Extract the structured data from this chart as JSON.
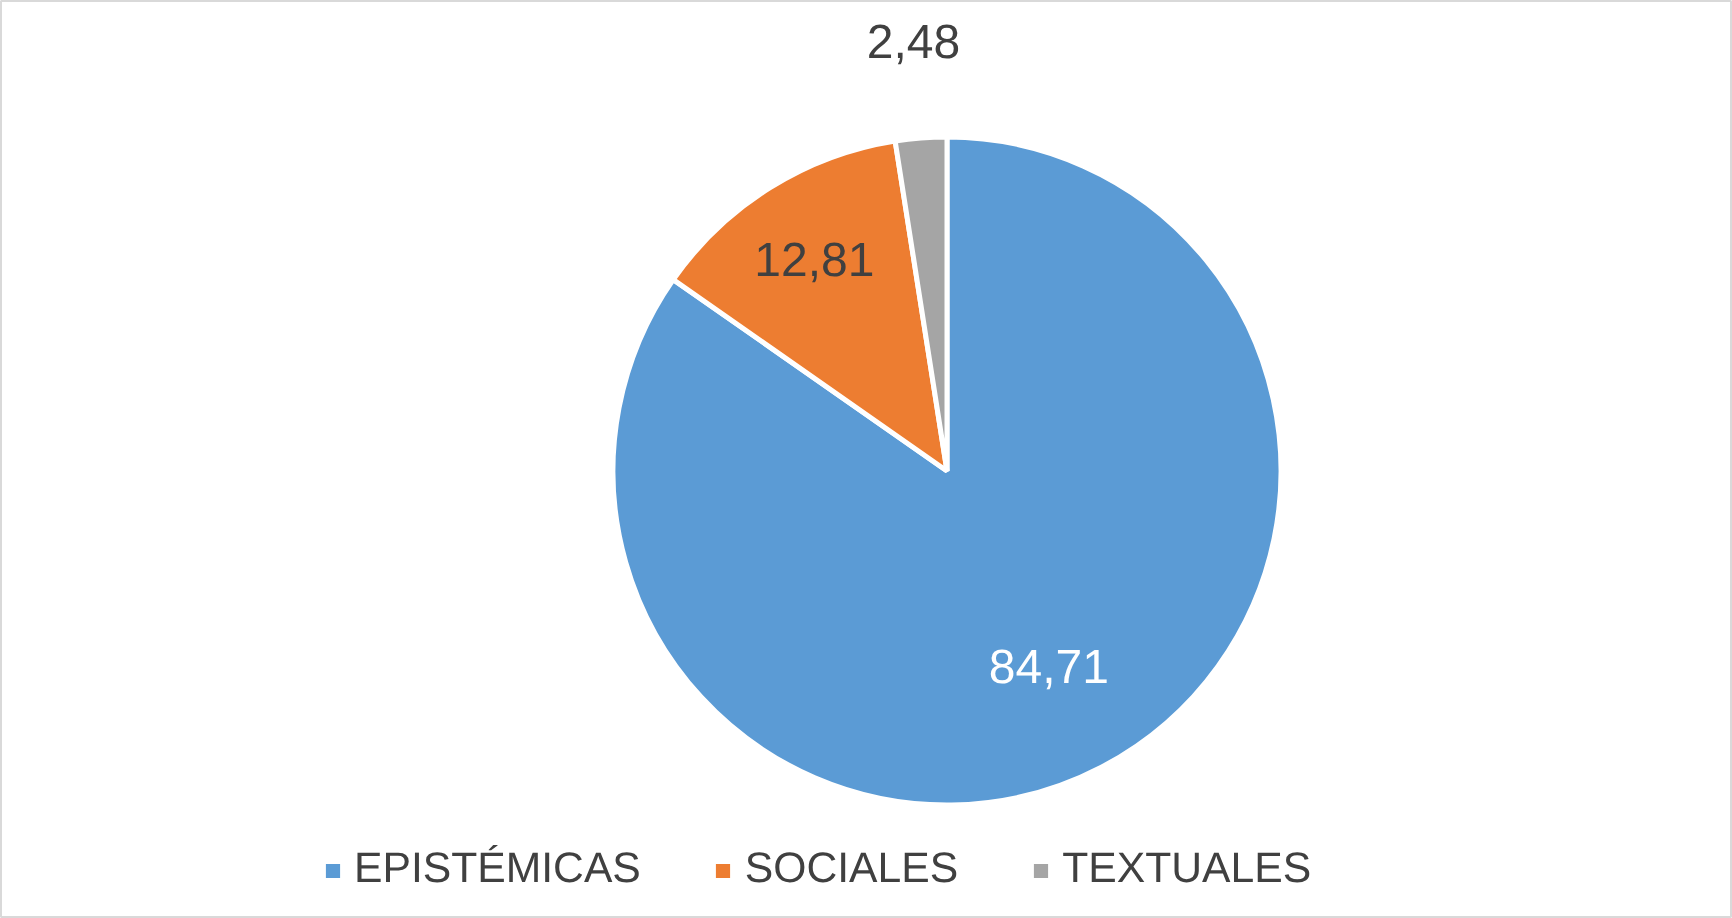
{
  "chart_data": {
    "type": "pie",
    "categories": [
      "EPISTÉMICAS",
      "SOCIALES",
      "TEXTUALES"
    ],
    "values": [
      84.71,
      12.81,
      2.48
    ],
    "colors": [
      "#5b9bd5",
      "#ed7d31",
      "#a5a5a5"
    ],
    "value_labels": [
      "84,71",
      "12,81",
      "2,48"
    ],
    "legend": "bottom"
  }
}
